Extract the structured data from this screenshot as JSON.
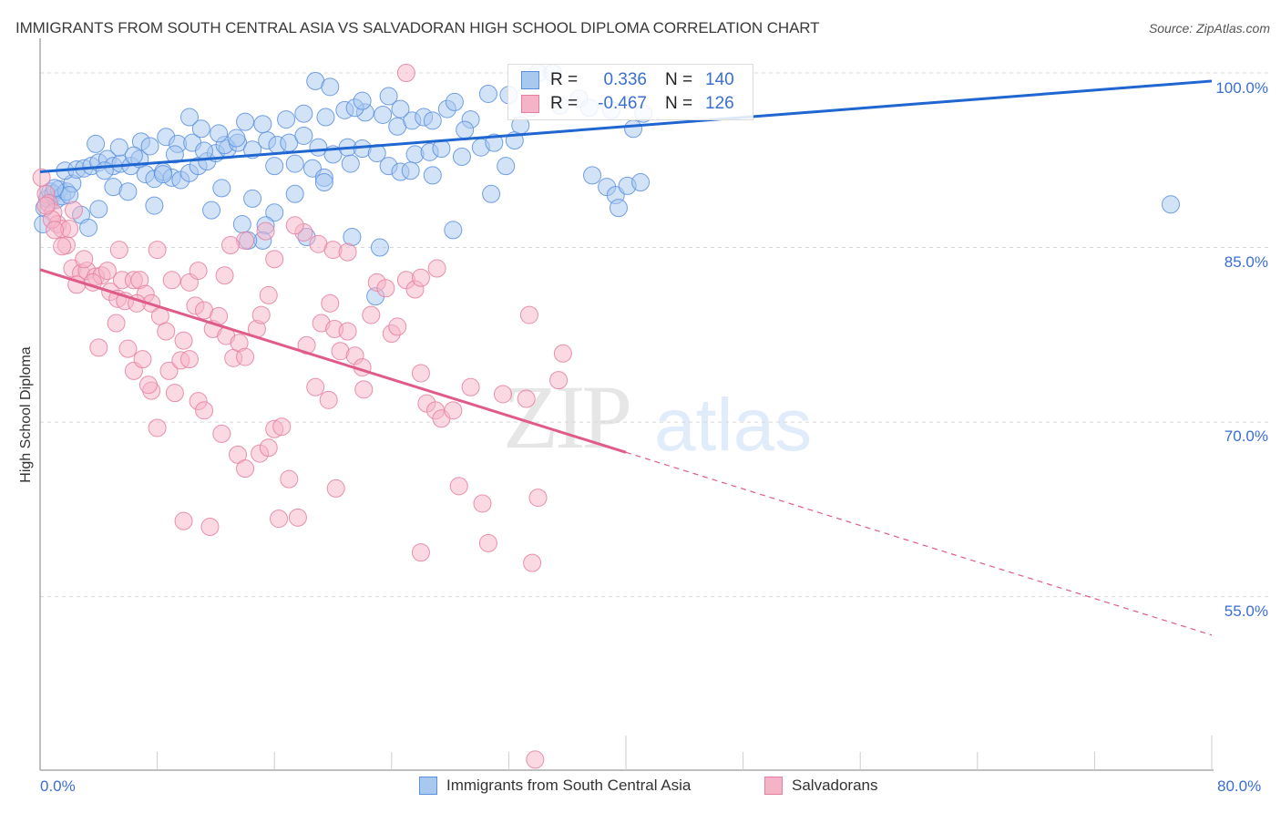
{
  "header": {
    "title": "IMMIGRANTS FROM SOUTH CENTRAL ASIA VS SALVADORAN HIGH SCHOOL DIPLOMA CORRELATION CHART",
    "source": "Source: ZipAtlas.com"
  },
  "watermark": {
    "zip": "ZIP",
    "atlas": "atlas"
  },
  "legend": {
    "rows": [
      {
        "r_label": "R =",
        "r_value": "0.336",
        "n_label": "N =",
        "n_value": "140"
      },
      {
        "r_label": "R =",
        "r_value": "-0.467",
        "n_label": "N =",
        "n_value": "126"
      }
    ]
  },
  "bottom_legend": {
    "items": [
      {
        "label": "Immigrants from South Central Asia"
      },
      {
        "label": "Salvadorans"
      }
    ]
  },
  "colors": {
    "blue_fill": "#a8c8f0",
    "blue_stroke": "#5b8fe0",
    "blue_line": "#1f66d1",
    "pink_fill": "#f5b3c8",
    "pink_stroke": "#e57fa0",
    "pink_line": "#e05a8a",
    "tick_text": "#3a6fd1",
    "grid": "#d8d8d8"
  },
  "chart_data": {
    "type": "scatter",
    "title": "IMMIGRANTS FROM SOUTH CENTRAL ASIA VS SALVADORAN HIGH SCHOOL DIPLOMA CORRELATION CHART",
    "xlabel": "",
    "ylabel": "High School Diploma",
    "xlim": [
      0,
      80
    ],
    "ylim": [
      40,
      100.5
    ],
    "x_tick_labels": [
      "0.0%",
      "80.0%"
    ],
    "x_ticks": [
      0,
      80
    ],
    "x_minor_ticks": [
      8,
      16,
      24,
      32,
      40,
      48,
      56,
      64,
      72
    ],
    "y_ticks": [
      100,
      85,
      70,
      55
    ],
    "y_tick_labels": [
      "100.0%",
      "85.0%",
      "70.0%",
      "55.0%"
    ],
    "grid": true,
    "legend_position": "top-center",
    "series": [
      {
        "name": "Immigrants from South Central Asia",
        "R": 0.336,
        "N": 140,
        "trend": {
          "x": [
            0,
            80
          ],
          "y": [
            91.5,
            99.3
          ],
          "style": "solid"
        },
        "points": [
          [
            0.2,
            87.0
          ],
          [
            0.3,
            88.4
          ],
          [
            0.5,
            89.2
          ],
          [
            0.7,
            89.8
          ],
          [
            0.9,
            89.6
          ],
          [
            1.1,
            89.1
          ],
          [
            1.3,
            90.0
          ],
          [
            1.5,
            89.4
          ],
          [
            1.8,
            89.8
          ],
          [
            2.2,
            90.5
          ],
          [
            1.7,
            91.6
          ],
          [
            2.5,
            91.7
          ],
          [
            3.0,
            91.8
          ],
          [
            3.5,
            92.0
          ],
          [
            4.0,
            92.3
          ],
          [
            4.6,
            92.6
          ],
          [
            5.0,
            92.0
          ],
          [
            5.5,
            92.2
          ],
          [
            6.2,
            92.0
          ],
          [
            6.8,
            92.6
          ],
          [
            7.2,
            91.3
          ],
          [
            7.8,
            90.9
          ],
          [
            8.4,
            91.5
          ],
          [
            9.0,
            91.0
          ],
          [
            9.6,
            90.8
          ],
          [
            10.2,
            91.4
          ],
          [
            10.8,
            92.0
          ],
          [
            11.4,
            92.4
          ],
          [
            12.0,
            93.1
          ],
          [
            12.8,
            93.5
          ],
          [
            3.8,
            93.9
          ],
          [
            5.4,
            93.6
          ],
          [
            6.9,
            94.1
          ],
          [
            7.5,
            93.7
          ],
          [
            8.6,
            94.5
          ],
          [
            9.4,
            93.9
          ],
          [
            10.4,
            94.0
          ],
          [
            11.2,
            93.3
          ],
          [
            12.6,
            93.8
          ],
          [
            13.5,
            94.0
          ],
          [
            14.5,
            93.4
          ],
          [
            15.5,
            94.2
          ],
          [
            16.2,
            93.8
          ],
          [
            17.0,
            94.0
          ],
          [
            18.0,
            94.6
          ],
          [
            19.0,
            93.6
          ],
          [
            20.0,
            93.0
          ],
          [
            21.0,
            93.6
          ],
          [
            22.0,
            93.5
          ],
          [
            23.0,
            93.1
          ],
          [
            14.0,
            95.8
          ],
          [
            15.2,
            95.6
          ],
          [
            16.8,
            96.0
          ],
          [
            18.0,
            96.5
          ],
          [
            19.5,
            96.2
          ],
          [
            20.8,
            96.8
          ],
          [
            22.2,
            96.6
          ],
          [
            23.4,
            96.4
          ],
          [
            24.4,
            95.4
          ],
          [
            25.4,
            95.9
          ],
          [
            10.2,
            96.2
          ],
          [
            11.0,
            95.2
          ],
          [
            12.2,
            94.8
          ],
          [
            13.4,
            94.4
          ],
          [
            16.0,
            92.0
          ],
          [
            17.4,
            92.2
          ],
          [
            18.6,
            91.8
          ],
          [
            19.4,
            91.0
          ],
          [
            21.2,
            92.2
          ],
          [
            23.8,
            92.0
          ],
          [
            24.6,
            91.5
          ],
          [
            25.6,
            93.0
          ],
          [
            26.6,
            93.2
          ],
          [
            27.4,
            93.5
          ],
          [
            28.8,
            92.8
          ],
          [
            30.1,
            93.6
          ],
          [
            31.0,
            94.0
          ],
          [
            29.4,
            96.0
          ],
          [
            30.6,
            98.2
          ],
          [
            32.0,
            98.1
          ],
          [
            18.8,
            99.3
          ],
          [
            19.8,
            98.8
          ],
          [
            21.5,
            97.0
          ],
          [
            22.0,
            97.6
          ],
          [
            23.8,
            98.0
          ],
          [
            27.8,
            96.9
          ],
          [
            28.3,
            97.5
          ],
          [
            24.6,
            96.9
          ],
          [
            26.2,
            96.2
          ],
          [
            26.8,
            95.9
          ],
          [
            29.0,
            95.1
          ],
          [
            33.5,
            97.0
          ],
          [
            34.0,
            100.0
          ],
          [
            35.0,
            100.0
          ],
          [
            35.5,
            97.2
          ],
          [
            36.8,
            97.8
          ],
          [
            37.5,
            97.0
          ],
          [
            39.0,
            96.8
          ],
          [
            40.5,
            95.2
          ],
          [
            41.2,
            96.5
          ],
          [
            32.4,
            94.2
          ],
          [
            32.8,
            95.5
          ],
          [
            30.8,
            89.6
          ],
          [
            31.8,
            92.0
          ],
          [
            37.7,
            91.2
          ],
          [
            38.7,
            90.2
          ],
          [
            39.3,
            89.5
          ],
          [
            40.1,
            90.3
          ],
          [
            41.0,
            90.6
          ],
          [
            39.5,
            88.4
          ],
          [
            26.8,
            91.2
          ],
          [
            25.3,
            91.6
          ],
          [
            19.4,
            90.6
          ],
          [
            17.4,
            89.6
          ],
          [
            16.0,
            88.0
          ],
          [
            14.5,
            89.2
          ],
          [
            11.7,
            88.2
          ],
          [
            8.4,
            91.3
          ],
          [
            5.0,
            90.2
          ],
          [
            4.0,
            88.3
          ],
          [
            2.8,
            87.8
          ],
          [
            3.3,
            86.7
          ],
          [
            7.8,
            88.6
          ],
          [
            12.4,
            90.1
          ],
          [
            13.8,
            87.0
          ],
          [
            15.4,
            86.9
          ],
          [
            18.2,
            85.9
          ],
          [
            21.3,
            85.9
          ],
          [
            23.2,
            85.0
          ],
          [
            28.2,
            86.5
          ],
          [
            15.2,
            85.6
          ],
          [
            14.2,
            85.6
          ],
          [
            22.9,
            80.8
          ],
          [
            77.2,
            88.7
          ],
          [
            6.0,
            89.8
          ],
          [
            2.0,
            89.5
          ],
          [
            1.0,
            90.1
          ],
          [
            4.4,
            91.6
          ],
          [
            6.4,
            92.9
          ],
          [
            9.2,
            93.0
          ]
        ]
      },
      {
        "name": "Salvadorans",
        "R": -0.467,
        "N": 126,
        "trend": {
          "x": [
            0,
            40,
            80
          ],
          "y": [
            83.1,
            67.4,
            51.7
          ],
          "style": "solid-then-dashed"
        },
        "points": [
          [
            0.1,
            91.0
          ],
          [
            0.4,
            89.6
          ],
          [
            0.6,
            88.8
          ],
          [
            0.9,
            88.0
          ],
          [
            1.2,
            87.0
          ],
          [
            1.5,
            86.6
          ],
          [
            1.8,
            85.2
          ],
          [
            2.0,
            86.6
          ],
          [
            1.5,
            85.1
          ],
          [
            0.8,
            87.4
          ],
          [
            2.2,
            83.2
          ],
          [
            2.8,
            82.8
          ],
          [
            3.2,
            83.0
          ],
          [
            3.8,
            82.5
          ],
          [
            2.5,
            81.8
          ],
          [
            4.2,
            82.6
          ],
          [
            4.8,
            81.2
          ],
          [
            5.3,
            80.6
          ],
          [
            5.6,
            82.2
          ],
          [
            5.8,
            80.4
          ],
          [
            6.4,
            82.2
          ],
          [
            6.8,
            82.2
          ],
          [
            7.2,
            81.0
          ],
          [
            7.6,
            80.2
          ],
          [
            8.2,
            79.1
          ],
          [
            8.6,
            77.8
          ],
          [
            9.0,
            82.2
          ],
          [
            9.8,
            77.0
          ],
          [
            10.2,
            82.0
          ],
          [
            10.6,
            80.0
          ],
          [
            11.2,
            79.6
          ],
          [
            11.8,
            78.0
          ],
          [
            12.2,
            79.1
          ],
          [
            12.7,
            77.4
          ],
          [
            13.2,
            75.5
          ],
          [
            13.6,
            76.8
          ],
          [
            14.0,
            75.6
          ],
          [
            14.8,
            78.0
          ],
          [
            15.1,
            79.2
          ],
          [
            15.6,
            80.9
          ],
          [
            4.0,
            76.4
          ],
          [
            5.2,
            78.5
          ],
          [
            6.0,
            76.3
          ],
          [
            6.4,
            74.4
          ],
          [
            7.0,
            75.4
          ],
          [
            7.6,
            72.7
          ],
          [
            8.0,
            69.5
          ],
          [
            8.8,
            74.4
          ],
          [
            9.2,
            72.5
          ],
          [
            9.6,
            75.3
          ],
          [
            10.2,
            75.4
          ],
          [
            10.8,
            71.8
          ],
          [
            11.2,
            71.0
          ],
          [
            12.4,
            69.0
          ],
          [
            13.5,
            67.2
          ],
          [
            14.0,
            66.0
          ],
          [
            15.0,
            67.3
          ],
          [
            15.6,
            67.8
          ],
          [
            16.0,
            69.4
          ],
          [
            16.5,
            69.6
          ],
          [
            17.0,
            65.1
          ],
          [
            17.6,
            61.8
          ],
          [
            18.2,
            76.6
          ],
          [
            18.8,
            73.0
          ],
          [
            19.2,
            78.5
          ],
          [
            19.8,
            80.2
          ],
          [
            20.1,
            78.0
          ],
          [
            20.5,
            76.1
          ],
          [
            21.0,
            77.8
          ],
          [
            21.5,
            75.7
          ],
          [
            22.0,
            74.7
          ],
          [
            22.6,
            79.2
          ],
          [
            23.0,
            82.0
          ],
          [
            23.6,
            81.5
          ],
          [
            24.0,
            77.6
          ],
          [
            24.4,
            78.2
          ],
          [
            25.0,
            82.2
          ],
          [
            25.6,
            81.4
          ],
          [
            26.0,
            82.4
          ],
          [
            27.1,
            83.2
          ],
          [
            18.0,
            86.3
          ],
          [
            17.4,
            86.9
          ],
          [
            19.0,
            85.3
          ],
          [
            20.0,
            84.8
          ],
          [
            21.0,
            84.6
          ],
          [
            16.0,
            84.0
          ],
          [
            15.4,
            86.4
          ],
          [
            14.0,
            85.6
          ],
          [
            13.0,
            85.2
          ],
          [
            12.6,
            82.6
          ],
          [
            10.8,
            83.0
          ],
          [
            8.0,
            84.8
          ],
          [
            5.4,
            84.8
          ],
          [
            3.0,
            84.0
          ],
          [
            26.0,
            74.2
          ],
          [
            26.4,
            71.6
          ],
          [
            27.0,
            71.0
          ],
          [
            27.4,
            70.3
          ],
          [
            28.2,
            71.0
          ],
          [
            28.6,
            64.5
          ],
          [
            29.4,
            73.0
          ],
          [
            30.2,
            63.0
          ],
          [
            30.6,
            59.6
          ],
          [
            31.6,
            72.4
          ],
          [
            33.2,
            72.0
          ],
          [
            34.0,
            63.5
          ],
          [
            33.4,
            79.2
          ],
          [
            35.4,
            73.6
          ],
          [
            35.7,
            75.9
          ],
          [
            33.6,
            57.9
          ],
          [
            26.0,
            58.8
          ],
          [
            25.0,
            100.0
          ],
          [
            33.8,
            41.0
          ],
          [
            9.8,
            61.5
          ],
          [
            11.6,
            61.0
          ],
          [
            20.2,
            64.3
          ],
          [
            16.3,
            61.7
          ],
          [
            7.4,
            73.2
          ],
          [
            22.1,
            72.8
          ],
          [
            19.7,
            71.9
          ],
          [
            3.6,
            82.0
          ],
          [
            2.3,
            88.2
          ],
          [
            1.0,
            86.5
          ],
          [
            0.4,
            88.6
          ],
          [
            4.6,
            83.0
          ],
          [
            6.6,
            80.2
          ]
        ]
      }
    ]
  }
}
